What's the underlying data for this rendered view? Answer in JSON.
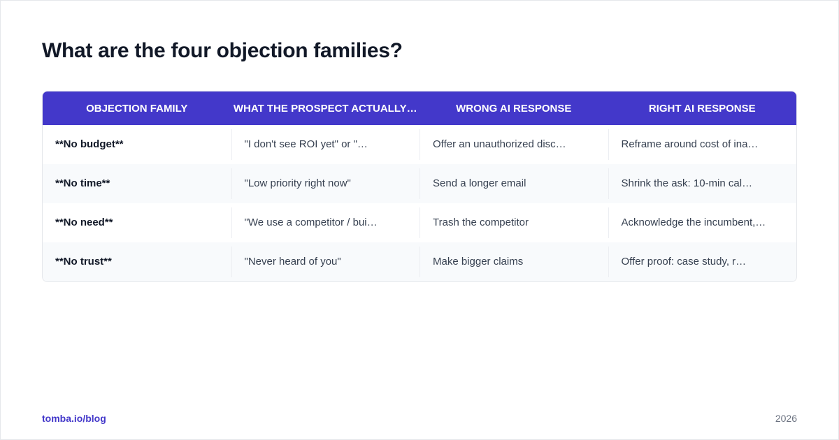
{
  "header": {
    "title": "What are the four objection families?"
  },
  "table": {
    "columns": [
      "OBJECTION FAMILY",
      "WHAT THE PROSPECT ACTUALLY…",
      "WRONG AI RESPONSE",
      "RIGHT AI RESPONSE"
    ],
    "rows": [
      [
        "**No budget**",
        "\"I don't see ROI yet\" or \"…",
        "Offer an unauthorized disc…",
        "Reframe around cost of ina…"
      ],
      [
        "**No time**",
        "\"Low priority right now\"",
        "Send a longer email",
        "Shrink the ask: 10-min cal…"
      ],
      [
        "**No need**",
        "\"We use a competitor / bui…",
        "Trash the competitor",
        "Acknowledge the incumbent,…"
      ],
      [
        "**No trust**",
        "\"Never heard of you\"",
        "Make bigger claims",
        "Offer proof: case study, r…"
      ]
    ]
  },
  "footer": {
    "source": "tomba.io/blog",
    "year": "2026"
  }
}
